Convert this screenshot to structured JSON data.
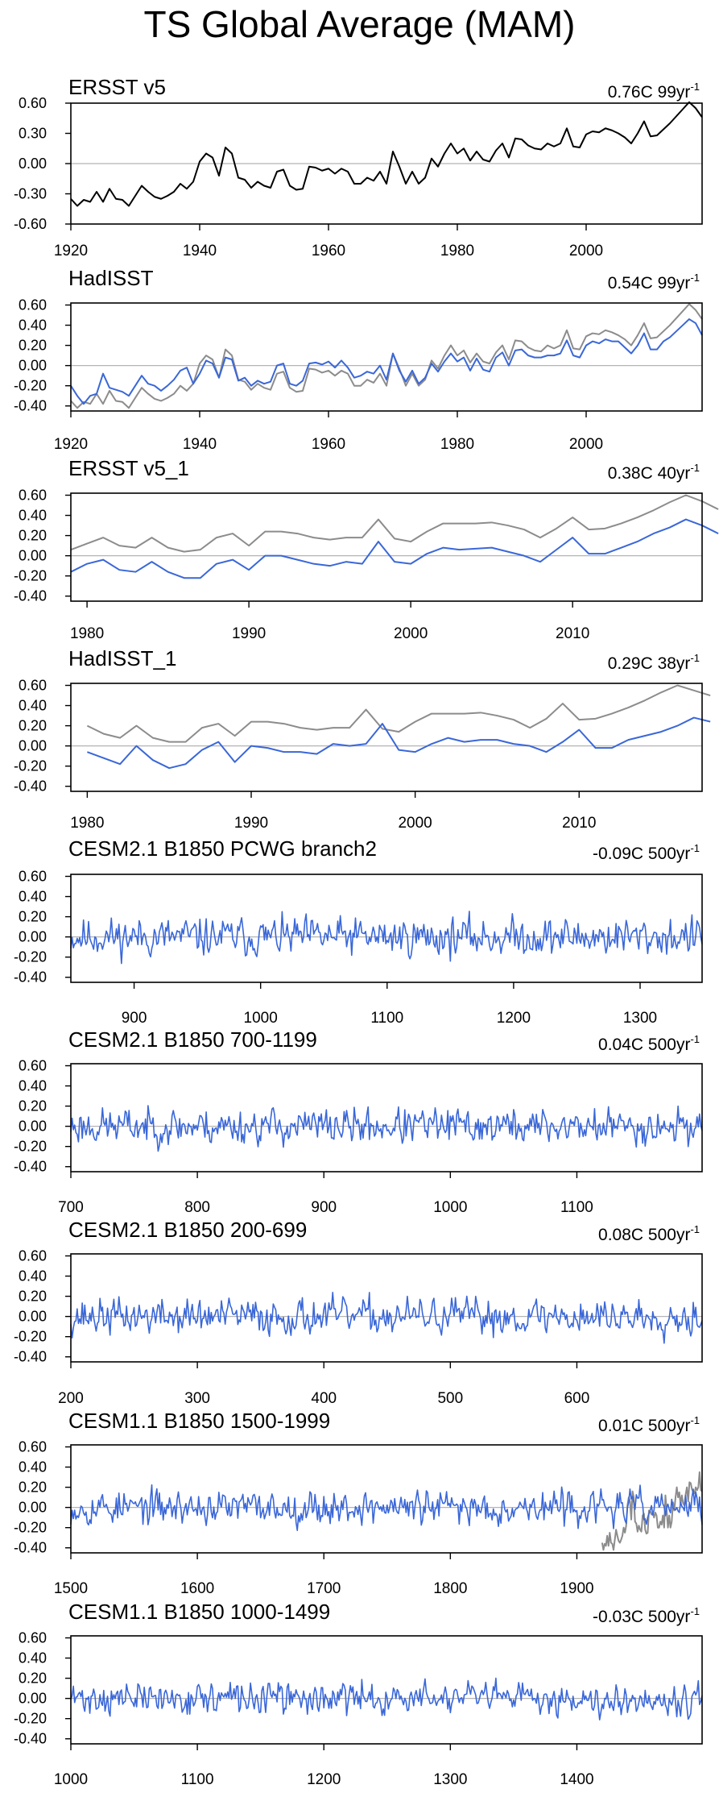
{
  "title": "TS Global Average (MAM)",
  "colors": {
    "obs": "#000000",
    "model": "#3a67d8",
    "obs_ref": "#8c8c8c",
    "zero": "#b4b4b4"
  },
  "chart_data": [
    {
      "type": "line",
      "title": "ERSST v5",
      "trend": "0.76C 99yr",
      "trend_exp": "-1",
      "xlim": [
        1920,
        2018
      ],
      "xticks": [
        1920,
        1940,
        1960,
        1980,
        2000
      ],
      "ylim": [
        -0.6,
        0.6
      ],
      "yticks": [
        "0.60",
        "0.30",
        "0.00",
        "-0.30",
        "-0.60"
      ],
      "ytick_values": [
        0.6,
        0.3,
        0,
        -0.3,
        -0.6
      ],
      "series": [
        {
          "name": "ERSST v5",
          "color": "obs",
          "x0": 1920,
          "values": [
            -0.35,
            -0.42,
            -0.36,
            -0.38,
            -0.28,
            -0.38,
            -0.25,
            -0.35,
            -0.36,
            -0.42,
            -0.32,
            -0.22,
            -0.28,
            -0.33,
            -0.35,
            -0.32,
            -0.28,
            -0.2,
            -0.25,
            -0.18,
            0.02,
            0.1,
            0.06,
            -0.12,
            0.16,
            0.1,
            -0.14,
            -0.16,
            -0.24,
            -0.18,
            -0.22,
            -0.24,
            -0.08,
            -0.06,
            -0.22,
            -0.26,
            -0.25,
            -0.03,
            -0.04,
            -0.07,
            -0.05,
            -0.1,
            -0.05,
            -0.08,
            -0.2,
            -0.2,
            -0.14,
            -0.17,
            -0.08,
            -0.2,
            0.12,
            -0.03,
            -0.2,
            -0.08,
            -0.2,
            -0.14,
            0.05,
            -0.03,
            0.1,
            0.2,
            0.1,
            0.15,
            0.03,
            0.12,
            0.04,
            0.02,
            0.13,
            0.2,
            0.06,
            0.25,
            0.24,
            0.18,
            0.15,
            0.14,
            0.2,
            0.17,
            0.2,
            0.35,
            0.17,
            0.16,
            0.29,
            0.32,
            0.31,
            0.35,
            0.33,
            0.3,
            0.26,
            0.2,
            0.3,
            0.42,
            0.27,
            0.28,
            0.34,
            0.4,
            0.47,
            0.54,
            0.61,
            0.55,
            0.46
          ]
        }
      ]
    },
    {
      "type": "line",
      "title": "HadISST",
      "trend": "0.54C 99yr",
      "trend_exp": "-1",
      "xlim": [
        1920,
        2018
      ],
      "xticks": [
        1920,
        1940,
        1960,
        1980,
        2000
      ],
      "ylim": [
        -0.45,
        0.62
      ],
      "yticks": [
        "0.60",
        "0.40",
        "0.20",
        "0.00",
        "-0.20",
        "-0.40"
      ],
      "ytick_values": [
        0.6,
        0.4,
        0.2,
        0,
        -0.2,
        -0.4
      ],
      "series": [
        {
          "name": "ERSST v5",
          "color": "obs_ref",
          "x0": 1920,
          "values": [
            -0.35,
            -0.42,
            -0.36,
            -0.38,
            -0.28,
            -0.38,
            -0.25,
            -0.35,
            -0.36,
            -0.42,
            -0.32,
            -0.22,
            -0.28,
            -0.33,
            -0.35,
            -0.32,
            -0.28,
            -0.2,
            -0.25,
            -0.18,
            0.02,
            0.1,
            0.06,
            -0.12,
            0.16,
            0.1,
            -0.14,
            -0.16,
            -0.24,
            -0.18,
            -0.22,
            -0.24,
            -0.08,
            -0.06,
            -0.22,
            -0.26,
            -0.25,
            -0.03,
            -0.04,
            -0.07,
            -0.05,
            -0.1,
            -0.05,
            -0.08,
            -0.2,
            -0.2,
            -0.14,
            -0.17,
            -0.08,
            -0.2,
            0.12,
            -0.03,
            -0.2,
            -0.08,
            -0.2,
            -0.14,
            0.05,
            -0.03,
            0.1,
            0.2,
            0.1,
            0.15,
            0.03,
            0.12,
            0.04,
            0.02,
            0.13,
            0.2,
            0.06,
            0.25,
            0.24,
            0.18,
            0.15,
            0.14,
            0.2,
            0.17,
            0.2,
            0.35,
            0.17,
            0.16,
            0.29,
            0.32,
            0.31,
            0.35,
            0.33,
            0.3,
            0.26,
            0.2,
            0.3,
            0.42,
            0.27,
            0.28,
            0.34,
            0.4,
            0.47,
            0.54,
            0.61,
            0.55,
            0.46
          ]
        },
        {
          "name": "HadISST",
          "color": "model",
          "x0": 1920,
          "values": [
            -0.2,
            -0.3,
            -0.38,
            -0.3,
            -0.28,
            -0.08,
            -0.22,
            -0.24,
            -0.26,
            -0.3,
            -0.2,
            -0.1,
            -0.18,
            -0.2,
            -0.25,
            -0.2,
            -0.14,
            -0.05,
            -0.02,
            -0.18,
            -0.08,
            0.05,
            0.02,
            -0.12,
            0.08,
            0.06,
            -0.15,
            -0.12,
            -0.2,
            -0.15,
            -0.18,
            -0.16,
            0.0,
            0.02,
            -0.18,
            -0.2,
            -0.15,
            0.02,
            0.03,
            0.01,
            0.04,
            -0.02,
            0.05,
            -0.02,
            -0.12,
            -0.1,
            -0.06,
            -0.08,
            0.0,
            -0.14,
            0.12,
            -0.05,
            -0.16,
            -0.05,
            -0.18,
            -0.12,
            0.02,
            -0.06,
            0.04,
            0.12,
            0.04,
            0.08,
            -0.05,
            0.07,
            -0.04,
            -0.06,
            0.08,
            0.13,
            0.0,
            0.15,
            0.16,
            0.1,
            0.08,
            0.08,
            0.1,
            0.1,
            0.12,
            0.25,
            0.1,
            0.08,
            0.2,
            0.24,
            0.22,
            0.26,
            0.24,
            0.24,
            0.18,
            0.12,
            0.2,
            0.32,
            0.16,
            0.16,
            0.24,
            0.28,
            0.34,
            0.4,
            0.46,
            0.42,
            0.3
          ]
        }
      ]
    },
    {
      "type": "line",
      "title": "ERSST v5_1",
      "trend": "0.38C 40yr",
      "trend_exp": "-1",
      "xlim": [
        1979,
        2018
      ],
      "xticks": [
        1980,
        1990,
        2000,
        2010
      ],
      "ylim": [
        -0.45,
        0.62
      ],
      "yticks": [
        "0.60",
        "0.40",
        "0.20",
        "0.00",
        "-0.20",
        "-0.40"
      ],
      "ytick_values": [
        0.6,
        0.4,
        0.2,
        0,
        -0.2,
        -0.4
      ],
      "series": [
        {
          "name": "ERSST v5",
          "color": "obs_ref",
          "x0": 1979,
          "values": [
            0.06,
            0.12,
            0.18,
            0.1,
            0.08,
            0.18,
            0.08,
            0.04,
            0.06,
            0.18,
            0.22,
            0.1,
            0.24,
            0.24,
            0.22,
            0.18,
            0.16,
            0.18,
            0.18,
            0.36,
            0.17,
            0.14,
            0.24,
            0.32,
            0.32,
            0.32,
            0.33,
            0.3,
            0.26,
            0.18,
            0.27,
            0.38,
            0.26,
            0.27,
            0.32,
            0.38,
            0.45,
            0.53,
            0.6,
            0.54,
            0.46
          ]
        },
        {
          "name": "ERSST v5_1",
          "color": "model",
          "x0": 1979,
          "values": [
            -0.16,
            -0.08,
            -0.04,
            -0.14,
            -0.16,
            -0.06,
            -0.16,
            -0.22,
            -0.22,
            -0.08,
            -0.04,
            -0.14,
            0.0,
            0.0,
            -0.04,
            -0.08,
            -0.1,
            -0.06,
            -0.08,
            0.14,
            -0.06,
            -0.08,
            0.02,
            0.08,
            0.06,
            0.07,
            0.08,
            0.04,
            0.0,
            -0.06,
            0.06,
            0.18,
            0.02,
            0.02,
            0.08,
            0.14,
            0.22,
            0.28,
            0.36,
            0.3,
            0.22
          ]
        }
      ]
    },
    {
      "type": "line",
      "title": "HadISST_1",
      "trend": "0.29C 38yr",
      "trend_exp": "-1",
      "xlim": [
        1979,
        2017.5
      ],
      "xticks": [
        1980,
        1990,
        2000,
        2010
      ],
      "ylim": [
        -0.45,
        0.62
      ],
      "yticks": [
        "0.60",
        "0.40",
        "0.20",
        "0.00",
        "-0.20",
        "-0.40"
      ],
      "ytick_values": [
        0.6,
        0.4,
        0.2,
        0,
        -0.2,
        -0.4
      ],
      "series": [
        {
          "name": "ERSST v5",
          "color": "obs_ref",
          "x0": 1980,
          "values": [
            0.2,
            0.12,
            0.08,
            0.2,
            0.08,
            0.04,
            0.04,
            0.18,
            0.22,
            0.1,
            0.24,
            0.24,
            0.22,
            0.18,
            0.16,
            0.18,
            0.18,
            0.36,
            0.17,
            0.14,
            0.24,
            0.32,
            0.32,
            0.32,
            0.33,
            0.3,
            0.26,
            0.18,
            0.27,
            0.42,
            0.26,
            0.27,
            0.32,
            0.38,
            0.45,
            0.53,
            0.6,
            0.55,
            0.5
          ]
        },
        {
          "name": "HadISST_1",
          "color": "model",
          "x0": 1980,
          "values": [
            -0.06,
            -0.12,
            -0.18,
            0.0,
            -0.14,
            -0.22,
            -0.18,
            -0.04,
            0.04,
            -0.16,
            0.0,
            -0.02,
            -0.06,
            -0.06,
            -0.08,
            0.02,
            0.0,
            0.02,
            0.22,
            -0.04,
            -0.06,
            0.02,
            0.08,
            0.04,
            0.06,
            0.06,
            0.02,
            0.0,
            -0.06,
            0.04,
            0.16,
            -0.02,
            -0.02,
            0.06,
            0.1,
            0.14,
            0.2,
            0.28,
            0.24
          ]
        }
      ]
    },
    {
      "type": "line",
      "title": "CESM2.1 B1850 PCWG branch2",
      "trend": "-0.09C 500yr",
      "trend_exp": "-1",
      "xlim": [
        850,
        1349
      ],
      "xticks": [
        900,
        1000,
        1100,
        1200,
        1300
      ],
      "ylim": [
        -0.45,
        0.62
      ],
      "yticks": [
        "0.60",
        "0.40",
        "0.20",
        "0.00",
        "-0.20",
        "-0.40"
      ],
      "ytick_values": [
        0.6,
        0.4,
        0.2,
        0,
        -0.2,
        -0.4
      ],
      "series": [
        {
          "name": "CESM2.1 B1850 PCWG branch2",
          "color": "model",
          "x0": 850,
          "n": 500,
          "noise": {
            "seed": 11,
            "amp": 0.09,
            "max": 0.33,
            "min": -0.27
          }
        }
      ]
    },
    {
      "type": "line",
      "title": "CESM2.1 B1850 700-1199",
      "trend": "0.04C 500yr",
      "trend_exp": "-1",
      "xlim": [
        700,
        1199
      ],
      "xticks": [
        700,
        800,
        900,
        1000,
        1100
      ],
      "ylim": [
        -0.45,
        0.62
      ],
      "yticks": [
        "0.60",
        "0.40",
        "0.20",
        "0.00",
        "-0.20",
        "-0.40"
      ],
      "ytick_values": [
        0.6,
        0.4,
        0.2,
        0,
        -0.2,
        -0.4
      ],
      "series": [
        {
          "name": "CESM2.1 B1850 700-1199",
          "color": "model",
          "x0": 700,
          "n": 500,
          "noise": {
            "seed": 23,
            "amp": 0.085,
            "max": 0.3,
            "min": -0.27
          }
        }
      ]
    },
    {
      "type": "line",
      "title": "CESM2.1 B1850 200-699",
      "trend": "0.08C 500yr",
      "trend_exp": "-1",
      "xlim": [
        200,
        699
      ],
      "xticks": [
        200,
        300,
        400,
        500,
        600
      ],
      "ylim": [
        -0.45,
        0.62
      ],
      "yticks": [
        "0.60",
        "0.40",
        "0.20",
        "0.00",
        "-0.20",
        "-0.40"
      ],
      "ytick_values": [
        0.6,
        0.4,
        0.2,
        0,
        -0.2,
        -0.4
      ],
      "series": [
        {
          "name": "CESM2.1 B1850 200-699",
          "color": "model",
          "x0": 200,
          "n": 500,
          "noise": {
            "seed": 37,
            "amp": 0.085,
            "max": 0.31,
            "min": -0.3
          }
        }
      ]
    },
    {
      "type": "line",
      "title": "CESM1.1 B1850 1500-1999",
      "trend": "0.01C 500yr",
      "trend_exp": "-1",
      "xlim": [
        1500,
        1999
      ],
      "xticks": [
        1500,
        1600,
        1700,
        1800,
        1900
      ],
      "ylim": [
        -0.45,
        0.62
      ],
      "yticks": [
        "0.60",
        "0.40",
        "0.20",
        "0.00",
        "-0.20",
        "-0.40"
      ],
      "ytick_values": [
        0.6,
        0.4,
        0.2,
        0,
        -0.2,
        -0.4
      ],
      "series": [
        {
          "name": "ERSST v5",
          "color": "obs_ref",
          "x0": 1920,
          "values": [
            -0.35,
            -0.42,
            -0.36,
            -0.38,
            -0.28,
            -0.38,
            -0.25,
            -0.35,
            -0.36,
            -0.42,
            -0.32,
            -0.22,
            -0.28,
            -0.33,
            -0.35,
            -0.32,
            -0.28,
            -0.2,
            -0.25,
            -0.18,
            0.02,
            0.1,
            0.06,
            -0.12,
            0.16,
            0.1,
            -0.14,
            -0.16,
            -0.24,
            -0.18,
            -0.22,
            -0.24,
            -0.08,
            -0.06,
            -0.22,
            -0.26,
            -0.25,
            -0.03,
            -0.04,
            -0.07,
            -0.05,
            -0.1,
            -0.05,
            -0.08,
            -0.2,
            -0.2,
            -0.14,
            -0.17,
            -0.08,
            -0.2,
            0.12,
            -0.03,
            -0.2,
            -0.08,
            -0.2,
            -0.14,
            0.05,
            -0.03,
            0.1,
            0.2,
            0.1,
            0.15,
            0.03,
            0.12,
            0.04,
            0.02,
            0.13,
            0.2,
            0.06,
            0.25,
            0.24,
            0.18,
            0.15,
            0.14,
            0.2,
            0.17,
            0.2,
            0.35,
            0.17,
            0.16
          ]
        },
        {
          "name": "CESM1.1 B1850 1500-1999",
          "color": "model",
          "x0": 1500,
          "n": 500,
          "noise": {
            "seed": 53,
            "amp": 0.08,
            "max": 0.27,
            "min": -0.25
          }
        }
      ]
    },
    {
      "type": "line",
      "title": "CESM1.1 B1850 1000-1499",
      "trend": "-0.03C 500yr",
      "trend_exp": "-1",
      "xlim": [
        1000,
        1499
      ],
      "xticks": [
        1000,
        1100,
        1200,
        1300,
        1400
      ],
      "ylim": [
        -0.45,
        0.62
      ],
      "yticks": [
        "0.60",
        "0.40",
        "0.20",
        "0.00",
        "-0.20",
        "-0.40"
      ],
      "ytick_values": [
        0.6,
        0.4,
        0.2,
        0,
        -0.2,
        -0.4
      ],
      "series": [
        {
          "name": "CESM1.1 B1850 1000-1499",
          "color": "model",
          "x0": 1000,
          "n": 500,
          "noise": {
            "seed": 71,
            "amp": 0.075,
            "max": 0.2,
            "min": -0.22
          }
        }
      ]
    }
  ]
}
